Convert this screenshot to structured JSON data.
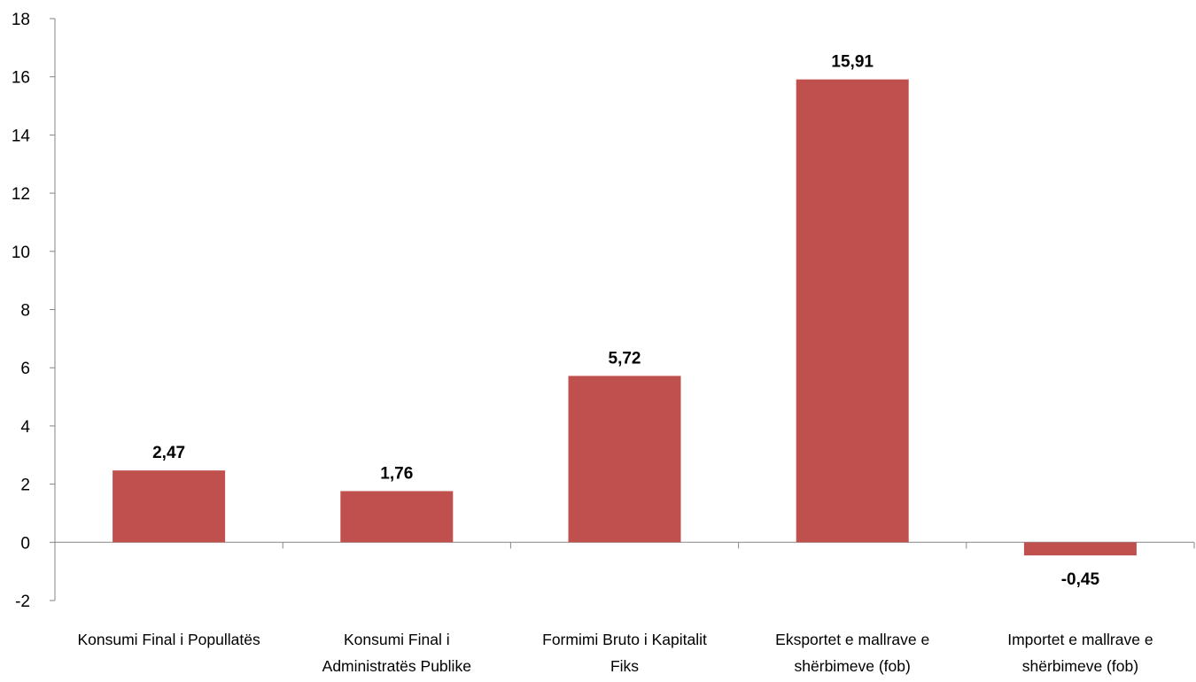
{
  "chart_data": {
    "type": "bar",
    "categories": [
      [
        "Konsumi Final i Popullatës"
      ],
      [
        "Konsumi Final i",
        "Administratës Publike"
      ],
      [
        "Formimi Bruto i Kapitalit",
        "Fiks"
      ],
      [
        "Eksportet e mallrave e",
        "shërbimeve (fob)"
      ],
      [
        "Importet e mallrave e",
        "shërbimeve (fob)"
      ]
    ],
    "values": [
      2.47,
      1.76,
      5.72,
      15.91,
      -0.45
    ],
    "data_labels": [
      "2,47",
      "1,76",
      "5,72",
      "15,91",
      "-0,45"
    ],
    "yticks": [
      -2,
      0,
      2,
      4,
      6,
      8,
      10,
      12,
      14,
      16,
      18
    ],
    "ylim": [
      -2,
      18
    ],
    "bar_color": "#C0504D",
    "grid": false,
    "legend": "none"
  }
}
